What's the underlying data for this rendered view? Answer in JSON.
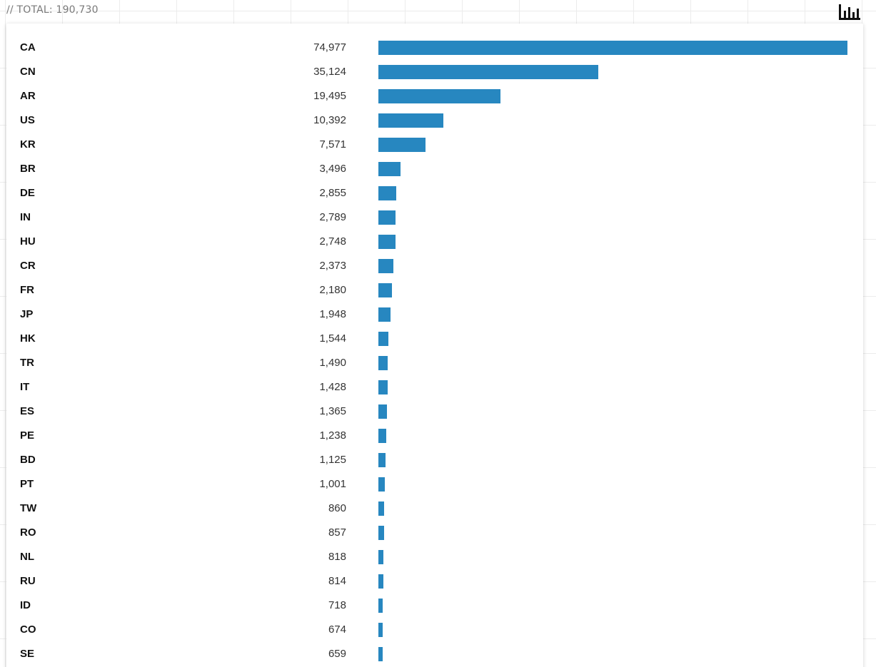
{
  "header": {
    "total_label": "// TOTAL: 190,730",
    "chart_icon": "bar-chart-icon"
  },
  "colors": {
    "bar": "#2787c0",
    "grid": "#ececec"
  },
  "chart_data": {
    "type": "bar",
    "orientation": "horizontal",
    "categories": [
      "CA",
      "CN",
      "AR",
      "US",
      "KR",
      "BR",
      "DE",
      "IN",
      "HU",
      "CR",
      "FR",
      "JP",
      "HK",
      "TR",
      "IT",
      "ES",
      "PE",
      "BD",
      "PT",
      "TW",
      "RO",
      "NL",
      "RU",
      "ID",
      "CO",
      "SE"
    ],
    "values": [
      74977,
      35124,
      19495,
      10392,
      7571,
      3496,
      2855,
      2789,
      2748,
      2373,
      2180,
      1948,
      1544,
      1490,
      1428,
      1365,
      1238,
      1125,
      1001,
      860,
      857,
      818,
      814,
      718,
      674,
      659
    ],
    "value_labels": [
      "74,977",
      "35,124",
      "19,495",
      "10,392",
      "7,571",
      "3,496",
      "2,855",
      "2,789",
      "2,748",
      "2,373",
      "2,180",
      "1,948",
      "1,544",
      "1,490",
      "1,428",
      "1,365",
      "1,238",
      "1,125",
      "1,001",
      "860",
      "857",
      "818",
      "814",
      "718",
      "674",
      "659"
    ],
    "xlim": [
      0,
      74977
    ],
    "grid": false,
    "title": "",
    "xlabel": "",
    "ylabel": ""
  }
}
